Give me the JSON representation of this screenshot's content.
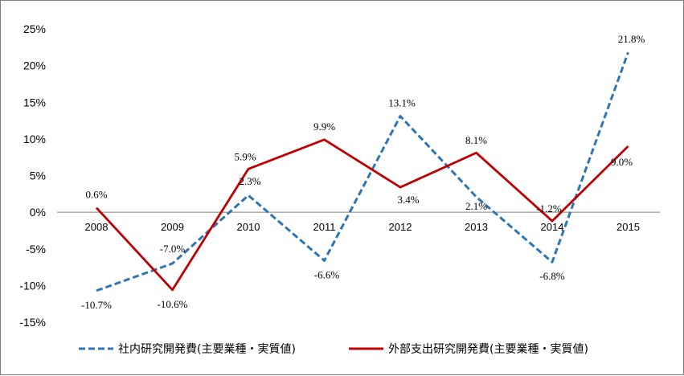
{
  "chart_data": {
    "type": "line",
    "title": "",
    "xlabel": "",
    "ylabel": "",
    "categories": [
      "2008",
      "2009",
      "2010",
      "2011",
      "2012",
      "2013",
      "2014",
      "2015"
    ],
    "ylim": [
      -15,
      25
    ],
    "yticks": [
      "25%",
      "20%",
      "15%",
      "10%",
      "5%",
      "0%",
      "-5%",
      "-10%",
      "-15%"
    ],
    "ytick_values": [
      25,
      20,
      15,
      10,
      5,
      0,
      -5,
      -10,
      -15
    ],
    "grid": false,
    "legend_position": "bottom",
    "series": [
      {
        "name": "社内研究開発費(主要業種・実質値)",
        "values": [
          -10.7,
          -7.0,
          2.3,
          -6.6,
          13.1,
          2.1,
          -6.8,
          21.8
        ],
        "labels": [
          "-10.7%",
          "-7.0%",
          "2.3%",
          "-6.6%",
          "13.1%",
          "2.1%",
          "-6.8%",
          "21.8%"
        ],
        "color": "#2e75b6",
        "style": "dashed"
      },
      {
        "name": "外部支出研究開発費(主要業種・実質値)",
        "values": [
          0.6,
          -10.6,
          5.9,
          9.9,
          3.4,
          8.1,
          -1.2,
          9.0
        ],
        "labels": [
          "0.6%",
          "-10.6%",
          "5.9%",
          "9.9%",
          "3.4%",
          "8.1%",
          "-1.2%",
          "9.0%"
        ],
        "color": "#c00000",
        "style": "solid"
      }
    ]
  }
}
